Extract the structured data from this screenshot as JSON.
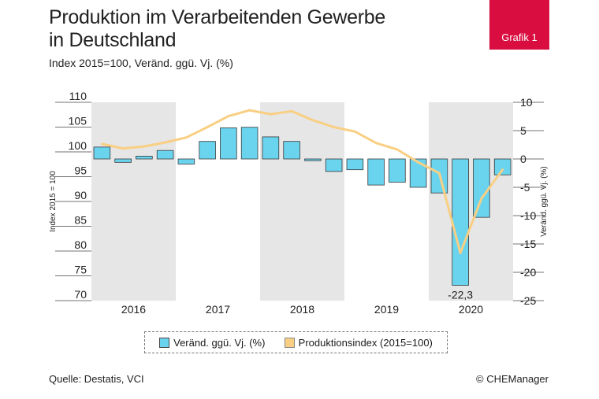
{
  "header": {
    "title_line1": "Produktion im Verarbeitenden Gewerbe",
    "title_line2": "in Deutschland",
    "subtitle": "Index 2015=100, Veränd. ggü. Vj. (%)",
    "badge": "Grafik 1"
  },
  "footer": {
    "source": "Quelle: Destatis, VCI",
    "credit": "© CHEManager"
  },
  "colors": {
    "bar": "#6ad3ee",
    "bar_stroke": "#3a3a3a",
    "line": "#f9cf83",
    "shade": "#e6e6e6",
    "badge": "#d90d3f"
  },
  "chart_data": {
    "type": "bar+line",
    "title": "Produktion im Verarbeitenden Gewerbe in Deutschland",
    "x_categories": [
      "2016",
      "2017",
      "2018",
      "2019",
      "2020"
    ],
    "quarters": [
      "2016 Q1",
      "2016 Q2",
      "2016 Q3",
      "2016 Q4",
      "2017 Q1",
      "2017 Q2",
      "2017 Q3",
      "2017 Q4",
      "2018 Q1",
      "2018 Q2",
      "2018 Q3",
      "2018 Q4",
      "2019 Q1",
      "2019 Q2",
      "2019 Q3",
      "2019 Q4",
      "2020 Q1",
      "2020 Q2",
      "2020 Q3",
      "2020 Q4"
    ],
    "left_axis": {
      "label": "Index 2015 = 100",
      "range": [
        70,
        110
      ],
      "ticks": [
        "70",
        "75",
        "80",
        "85",
        "90",
        "95",
        "100",
        "105",
        "110"
      ]
    },
    "right_axis": {
      "label": "Veränd. ggü. Vj. (%)",
      "range": [
        -25,
        10
      ],
      "ticks": [
        "-25",
        "-20",
        "-15",
        "-10",
        "-5",
        "0",
        "5",
        "10"
      ]
    },
    "series": [
      {
        "name": "Veränd. ggü. Vj. (%)",
        "type": "bar",
        "axis": "right",
        "values": [
          2.1,
          -0.6,
          0.5,
          1.5,
          -0.9,
          3.1,
          5.5,
          5.6,
          3.9,
          3.1,
          -0.3,
          -2.2,
          -1.9,
          -4.6,
          -4.1,
          -5.0,
          -6.0,
          -22.3,
          -10.3,
          -2.8
        ]
      },
      {
        "name": "Produktionsindex (2015=100)",
        "type": "line",
        "axis": "left",
        "values": [
          101.6,
          100.7,
          101.1,
          101.9,
          102.9,
          105.0,
          107.2,
          108.4,
          107.6,
          108.2,
          106.4,
          105.0,
          104.1,
          101.8,
          100.5,
          97.9,
          95.7,
          79.6,
          90.6,
          96.4
        ]
      }
    ],
    "annotations": [
      {
        "text": "-22,3"
      }
    ],
    "shaded_years": [
      "2016",
      "2018",
      "2020"
    ]
  }
}
